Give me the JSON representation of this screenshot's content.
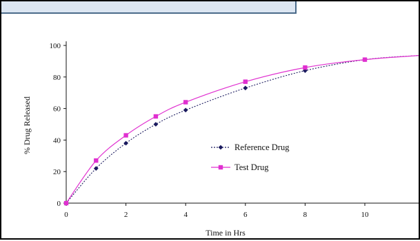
{
  "chart_data": {
    "type": "line",
    "title": "",
    "xlabel": "Time in Hrs",
    "ylabel": "% Drug Released",
    "xlim": [
      0,
      12
    ],
    "ylim": [
      0,
      100
    ],
    "xticks": [
      0,
      2,
      4,
      6,
      8,
      10
    ],
    "yticks": [
      0,
      20,
      40,
      60,
      80,
      100
    ],
    "grid": false,
    "legend_position": "center",
    "series": [
      {
        "name": "Reference Drug",
        "color": "#1a1a5e",
        "marker": "diamond",
        "line_style": "dotted",
        "x": [
          0,
          1,
          2,
          3,
          4,
          6,
          8,
          10
        ],
        "y": [
          0,
          22,
          38,
          50,
          59,
          73,
          84,
          91
        ]
      },
      {
        "name": "Test Drug",
        "color": "#e030d0",
        "marker": "square",
        "line_style": "solid",
        "x": [
          0,
          1,
          2,
          3,
          4,
          6,
          8,
          10
        ],
        "y": [
          0,
          27,
          43,
          55,
          64,
          77,
          86,
          91
        ]
      }
    ]
  }
}
